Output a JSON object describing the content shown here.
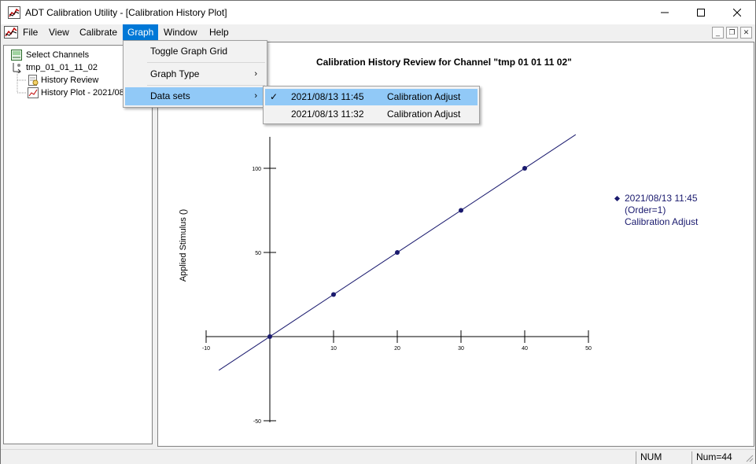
{
  "window": {
    "title": "ADT Calibration Utility - [Calibration History Plot]"
  },
  "menubar": {
    "items": [
      {
        "label": "File"
      },
      {
        "label": "View"
      },
      {
        "label": "Calibrate"
      },
      {
        "label": "Graph"
      },
      {
        "label": "Window"
      },
      {
        "label": "Help"
      }
    ]
  },
  "graph_menu": {
    "items": [
      {
        "label": "Toggle Graph Grid"
      },
      {
        "label": "Graph Type"
      },
      {
        "label": "Data sets"
      }
    ]
  },
  "datasets_menu": {
    "items": [
      {
        "date": "2021/08/13 11:45",
        "desc": "Calibration Adjust",
        "checked": true
      },
      {
        "date": "2021/08/13 11:32",
        "desc": "Calibration Adjust",
        "checked": false
      }
    ]
  },
  "tree": {
    "root": "Select Channels",
    "channel": "tmp_01_01_11_02",
    "children": [
      {
        "label": "History Review"
      },
      {
        "label": "History Plot - 2021/08"
      }
    ]
  },
  "chart_data": {
    "type": "scatter",
    "title": "Calibration History Review for Channel \"tmp 01 01 11 02\"",
    "ylabel": "Applied Stimulus ()",
    "xlabel": "",
    "xlim": [
      -10,
      50
    ],
    "ylim": [
      -50,
      100
    ],
    "x_ticks": [
      -10,
      10,
      20,
      30,
      40,
      50
    ],
    "y_ticks": [
      100,
      50,
      -50
    ],
    "series": [
      {
        "name": "2021/08/13 11:45",
        "order": "(Order=1)",
        "desc": "Calibration Adjust",
        "color": "#1a1a6e",
        "x": [
          0,
          10,
          20,
          30,
          40
        ],
        "y": [
          0,
          25,
          50,
          75,
          100
        ],
        "fit_line": {
          "x": [
            -8,
            48
          ],
          "y": [
            -20,
            120
          ]
        }
      }
    ],
    "grid": false,
    "legend_position": "right"
  },
  "legend": {
    "line1": "2021/08/13 11:45",
    "line2": "(Order=1)",
    "line3": "Calibration Adjust"
  },
  "statusbar": {
    "num": "NUM",
    "count": "Num=44"
  }
}
